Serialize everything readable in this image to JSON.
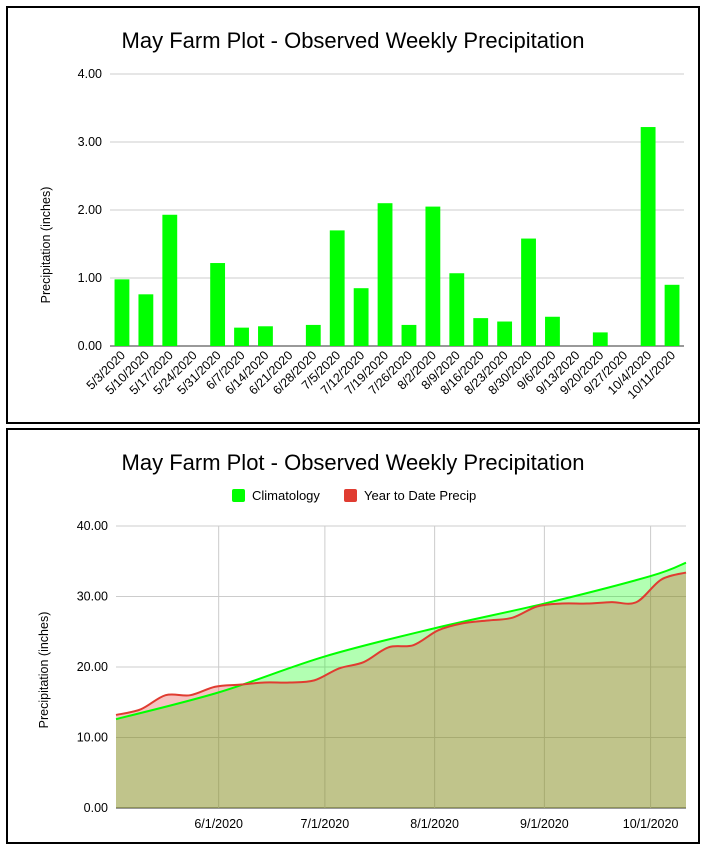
{
  "chart_data": [
    {
      "type": "bar",
      "title": "May Farm Plot - Observed Weekly Precipitation",
      "xlabel": "",
      "ylabel": "Precipitation (inches)",
      "ylim": [
        0,
        4
      ],
      "yticks": [
        "0.00",
        "1.00",
        "2.00",
        "3.00",
        "4.00"
      ],
      "grid": true,
      "legend": "none",
      "bar_color": "#00ff00",
      "categories": [
        "5/3/2020",
        "5/10/2020",
        "5/17/2020",
        "5/24/2020",
        "5/31/2020",
        "6/7/2020",
        "6/14/2020",
        "6/21/2020",
        "6/28/2020",
        "7/5/2020",
        "7/12/2020",
        "7/19/2020",
        "7/26/2020",
        "8/2/2020",
        "8/9/2020",
        "8/16/2020",
        "8/23/2020",
        "8/30/2020",
        "9/6/2020",
        "9/13/2020",
        "9/20/2020",
        "9/27/2020",
        "10/4/2020",
        "10/11/2020"
      ],
      "values": [
        0.98,
        0.76,
        1.93,
        0,
        1.22,
        0.27,
        0.29,
        0,
        0.31,
        1.7,
        0.85,
        2.1,
        0.31,
        2.05,
        1.07,
        0.41,
        0.36,
        1.58,
        0.43,
        0,
        0.2,
        0,
        3.22,
        0.9
      ]
    },
    {
      "type": "area",
      "title": "May Farm Plot - Observed Weekly Precipitation",
      "xlabel": "",
      "ylabel": "Precipitation (inches)",
      "ylim": [
        0,
        40
      ],
      "yticks": [
        "0.00",
        "10.00",
        "20.00",
        "30.00",
        "40.00"
      ],
      "xlim": [
        "2020-05-03",
        "2020-10-11"
      ],
      "xticks": [
        {
          "date": "2020-06-01",
          "label": "6/1/2020"
        },
        {
          "date": "2020-07-01",
          "label": "7/1/2020"
        },
        {
          "date": "2020-08-01",
          "label": "8/1/2020"
        },
        {
          "date": "2020-09-01",
          "label": "9/1/2020"
        },
        {
          "date": "2020-10-01",
          "label": "10/1/2020"
        }
      ],
      "grid": true,
      "legend": "top",
      "series": [
        {
          "name": "Climatology",
          "color": "#00ff00",
          "points": [
            {
              "x": "2020-05-03",
              "y": 12.6
            },
            {
              "x": "2020-06-01",
              "y": 16.4
            },
            {
              "x": "2020-07-01",
              "y": 21.5
            },
            {
              "x": "2020-08-01",
              "y": 25.5
            },
            {
              "x": "2020-09-01",
              "y": 29.0
            },
            {
              "x": "2020-10-01",
              "y": 32.9
            },
            {
              "x": "2020-10-11",
              "y": 34.8
            }
          ]
        },
        {
          "name": "Year to Date Precip",
          "color": "#e03c31",
          "points": [
            {
              "x": "2020-05-03",
              "y": 13.2
            },
            {
              "x": "2020-05-10",
              "y": 14.0
            },
            {
              "x": "2020-05-17",
              "y": 16.0
            },
            {
              "x": "2020-05-24",
              "y": 16.0
            },
            {
              "x": "2020-05-31",
              "y": 17.2
            },
            {
              "x": "2020-06-07",
              "y": 17.5
            },
            {
              "x": "2020-06-14",
              "y": 17.8
            },
            {
              "x": "2020-06-21",
              "y": 17.8
            },
            {
              "x": "2020-06-28",
              "y": 18.1
            },
            {
              "x": "2020-07-05",
              "y": 19.8
            },
            {
              "x": "2020-07-12",
              "y": 20.7
            },
            {
              "x": "2020-07-19",
              "y": 22.8
            },
            {
              "x": "2020-07-26",
              "y": 23.1
            },
            {
              "x": "2020-08-02",
              "y": 25.2
            },
            {
              "x": "2020-08-09",
              "y": 26.2
            },
            {
              "x": "2020-08-16",
              "y": 26.6
            },
            {
              "x": "2020-08-23",
              "y": 27.0
            },
            {
              "x": "2020-08-30",
              "y": 28.6
            },
            {
              "x": "2020-09-06",
              "y": 29.0
            },
            {
              "x": "2020-09-13",
              "y": 29.0
            },
            {
              "x": "2020-09-20",
              "y": 29.2
            },
            {
              "x": "2020-09-27",
              "y": 29.2
            },
            {
              "x": "2020-10-04",
              "y": 32.4
            },
            {
              "x": "2020-10-11",
              "y": 33.4
            }
          ]
        }
      ]
    }
  ]
}
